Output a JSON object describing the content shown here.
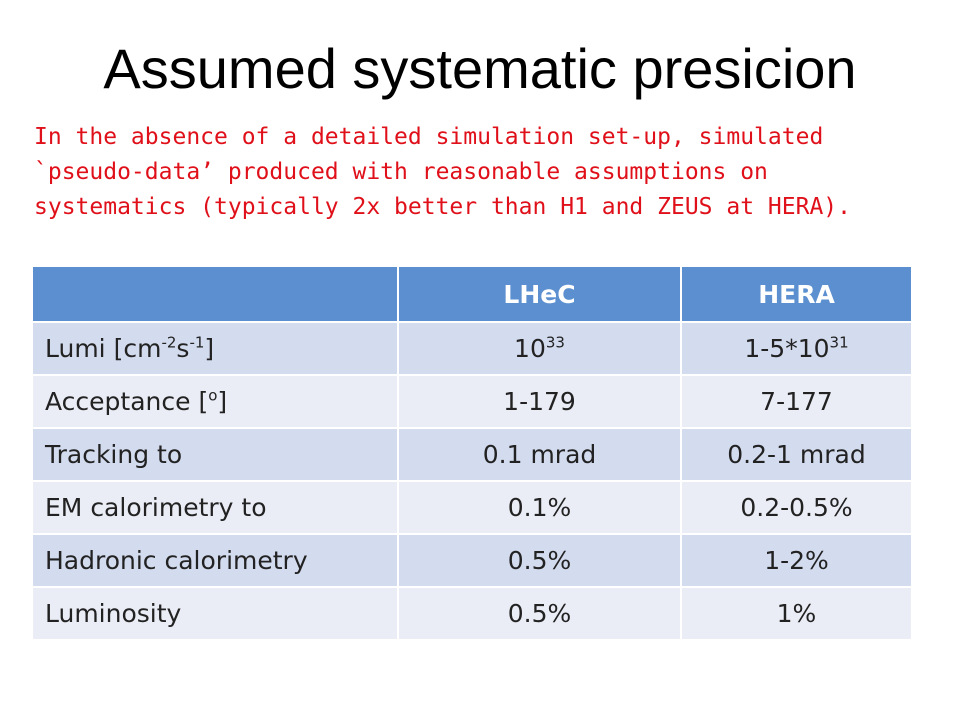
{
  "slide": {
    "title": "Assumed systematic presicion",
    "intro_lines": [
      "In the absence of a detailed simulation set-up, simulated",
      "`pseudo-data’ produced with reasonable assumptions on",
      "systematics (typically 2x better than H1 and ZEUS at HERA)."
    ]
  },
  "table": {
    "headers": [
      "",
      "LHeC",
      "HERA"
    ],
    "lumi": {
      "label_pre": "Lumi [cm",
      "label_sup1": "-2",
      "label_mid": "s",
      "label_sup2": "-1",
      "label_post": "]",
      "lhec_base": "10",
      "lhec_exp": "33",
      "hera_base": "1-5*10",
      "hera_exp": "31"
    },
    "acceptance": {
      "label_pre": "Acceptance [",
      "label_sup": "o",
      "label_post": "]",
      "lhec": "1-179",
      "hera": "7-177"
    },
    "rows": [
      {
        "label": "Tracking to",
        "lhec": "0.1 mrad",
        "hera": "0.2-1 mrad"
      },
      {
        "label": "EM calorimetry to",
        "lhec": "0.1%",
        "hera": "0.2-0.5%"
      },
      {
        "label": "Hadronic calorimetry",
        "lhec": "0.5%",
        "hera": "1-2%"
      },
      {
        "label": "Luminosity",
        "lhec": "0.5%",
        "hera": "1%"
      }
    ]
  },
  "colors": {
    "title": "#000000",
    "intro_text": "#e0101a",
    "header_bg": "#5b8fd0",
    "row_dark": "#d3dbee",
    "row_light": "#eaedf6"
  }
}
